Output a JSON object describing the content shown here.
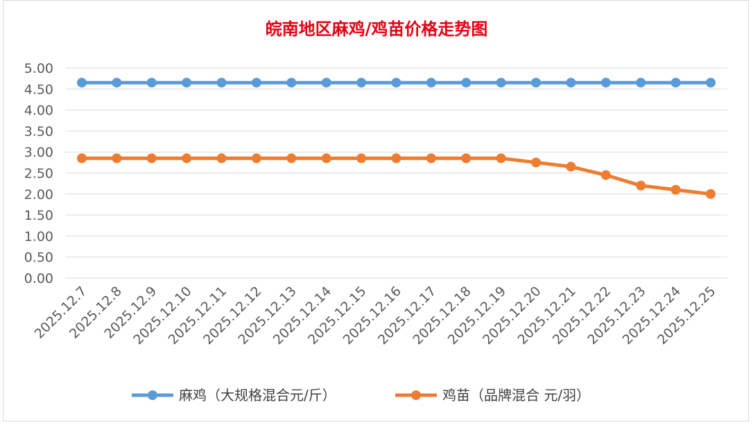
{
  "chart_data": {
    "type": "line",
    "title": "皖南地区麻鸡/鸡苗价格走势图",
    "categories": [
      "2025.12.7",
      "2025.12.8",
      "2025.12.9",
      "2025.12.10",
      "2025.12.11",
      "2025.12.12",
      "2025.12.13",
      "2025.12.14",
      "2025.12.15",
      "2025.12.16",
      "2025.12.17",
      "2025.12.18",
      "2025.12.19",
      "2025.12.20",
      "2025.12.21",
      "2025.12.22",
      "2025.12.23",
      "2025.12.24",
      "2025.12.25"
    ],
    "series": [
      {
        "name": "麻鸡（大规格混合元/斤）",
        "color": "#5b9bd5",
        "values": [
          4.65,
          4.65,
          4.65,
          4.65,
          4.65,
          4.65,
          4.65,
          4.65,
          4.65,
          4.65,
          4.65,
          4.65,
          4.65,
          4.65,
          4.65,
          4.65,
          4.65,
          4.65,
          4.65
        ]
      },
      {
        "name": "鸡苗（品牌混合 元/羽）",
        "color": "#ed7d31",
        "values": [
          2.85,
          2.85,
          2.85,
          2.85,
          2.85,
          2.85,
          2.85,
          2.85,
          2.85,
          2.85,
          2.85,
          2.85,
          2.85,
          2.75,
          2.65,
          2.45,
          2.2,
          2.1,
          2.0
        ]
      }
    ],
    "ylim": [
      0,
      5
    ],
    "yticks": [
      "0.00",
      "0.50",
      "1.00",
      "1.50",
      "2.00",
      "2.50",
      "3.00",
      "3.50",
      "4.00",
      "4.50",
      "5.00"
    ],
    "grid": true,
    "legend": "bottom"
  }
}
